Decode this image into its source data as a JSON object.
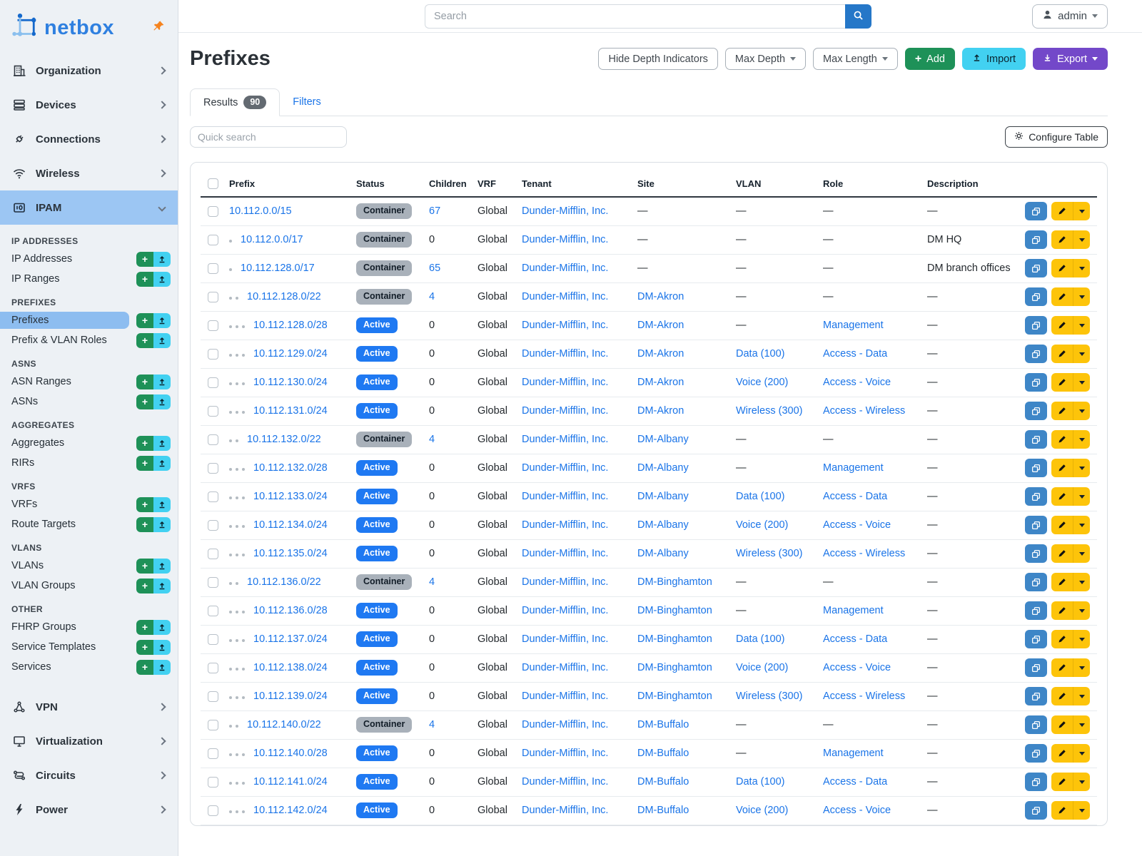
{
  "app": {
    "logo_text": "netbox"
  },
  "topbar": {
    "search_placeholder": "Search",
    "user": "admin"
  },
  "sidebar": {
    "top_items": [
      {
        "label": "Organization"
      },
      {
        "label": "Devices"
      },
      {
        "label": "Connections"
      },
      {
        "label": "Wireless"
      }
    ],
    "ipam_label": "IPAM",
    "ipam_sections": [
      {
        "label": "IP ADDRESSES",
        "items": [
          {
            "label": "IP Addresses"
          },
          {
            "label": "IP Ranges"
          }
        ]
      },
      {
        "label": "PREFIXES",
        "items": [
          {
            "label": "Prefixes",
            "active": true
          },
          {
            "label": "Prefix & VLAN Roles"
          }
        ]
      },
      {
        "label": "ASNS",
        "items": [
          {
            "label": "ASN Ranges"
          },
          {
            "label": "ASNs"
          }
        ]
      },
      {
        "label": "AGGREGATES",
        "items": [
          {
            "label": "Aggregates"
          },
          {
            "label": "RIRs"
          }
        ]
      },
      {
        "label": "VRFS",
        "items": [
          {
            "label": "VRFs"
          },
          {
            "label": "Route Targets"
          }
        ]
      },
      {
        "label": "VLANS",
        "items": [
          {
            "label": "VLANs"
          },
          {
            "label": "VLAN Groups"
          }
        ]
      },
      {
        "label": "OTHER",
        "items": [
          {
            "label": "FHRP Groups"
          },
          {
            "label": "Service Templates"
          },
          {
            "label": "Services"
          }
        ]
      }
    ],
    "bottom_items": [
      {
        "label": "VPN"
      },
      {
        "label": "Virtualization"
      },
      {
        "label": "Circuits"
      },
      {
        "label": "Power"
      }
    ]
  },
  "page": {
    "title": "Prefixes",
    "toolbar": {
      "hide_depth": "Hide Depth Indicators",
      "max_depth": "Max Depth",
      "max_length": "Max Length",
      "add": "Add",
      "import": "Import",
      "export": "Export"
    },
    "tabs": {
      "results": "Results",
      "results_count": "90",
      "filters": "Filters"
    },
    "quick_search_placeholder": "Quick search",
    "configure_table": "Configure Table"
  },
  "table": {
    "columns": [
      "Prefix",
      "Status",
      "Children",
      "VRF",
      "Tenant",
      "Site",
      "VLAN",
      "Role",
      "Description"
    ],
    "rows": [
      {
        "depth": 0,
        "prefix": "10.112.0.0/15",
        "status": "Container",
        "children": "67",
        "children_link": true,
        "vrf": "Global",
        "tenant": "Dunder-Mifflin, Inc.",
        "site": "—",
        "vlan": "—",
        "role": "—",
        "description": "—"
      },
      {
        "depth": 1,
        "prefix": "10.112.0.0/17",
        "status": "Container",
        "children": "0",
        "children_link": false,
        "vrf": "Global",
        "tenant": "Dunder-Mifflin, Inc.",
        "site": "—",
        "vlan": "—",
        "role": "—",
        "description": "DM HQ"
      },
      {
        "depth": 1,
        "prefix": "10.112.128.0/17",
        "status": "Container",
        "children": "65",
        "children_link": true,
        "vrf": "Global",
        "tenant": "Dunder-Mifflin, Inc.",
        "site": "—",
        "vlan": "—",
        "role": "—",
        "description": "DM branch offices"
      },
      {
        "depth": 2,
        "prefix": "10.112.128.0/22",
        "status": "Container",
        "children": "4",
        "children_link": true,
        "vrf": "Global",
        "tenant": "Dunder-Mifflin, Inc.",
        "site": "DM-Akron",
        "vlan": "—",
        "role": "—",
        "description": "—"
      },
      {
        "depth": 3,
        "prefix": "10.112.128.0/28",
        "status": "Active",
        "children": "0",
        "children_link": false,
        "vrf": "Global",
        "tenant": "Dunder-Mifflin, Inc.",
        "site": "DM-Akron",
        "vlan": "—",
        "role": "Management",
        "description": "—"
      },
      {
        "depth": 3,
        "prefix": "10.112.129.0/24",
        "status": "Active",
        "children": "0",
        "children_link": false,
        "vrf": "Global",
        "tenant": "Dunder-Mifflin, Inc.",
        "site": "DM-Akron",
        "vlan": "Data (100)",
        "role": "Access - Data",
        "description": "—"
      },
      {
        "depth": 3,
        "prefix": "10.112.130.0/24",
        "status": "Active",
        "children": "0",
        "children_link": false,
        "vrf": "Global",
        "tenant": "Dunder-Mifflin, Inc.",
        "site": "DM-Akron",
        "vlan": "Voice (200)",
        "role": "Access - Voice",
        "description": "—"
      },
      {
        "depth": 3,
        "prefix": "10.112.131.0/24",
        "status": "Active",
        "children": "0",
        "children_link": false,
        "vrf": "Global",
        "tenant": "Dunder-Mifflin, Inc.",
        "site": "DM-Akron",
        "vlan": "Wireless (300)",
        "role": "Access - Wireless",
        "description": "—"
      },
      {
        "depth": 2,
        "prefix": "10.112.132.0/22",
        "status": "Container",
        "children": "4",
        "children_link": true,
        "vrf": "Global",
        "tenant": "Dunder-Mifflin, Inc.",
        "site": "DM-Albany",
        "vlan": "—",
        "role": "—",
        "description": "—"
      },
      {
        "depth": 3,
        "prefix": "10.112.132.0/28",
        "status": "Active",
        "children": "0",
        "children_link": false,
        "vrf": "Global",
        "tenant": "Dunder-Mifflin, Inc.",
        "site": "DM-Albany",
        "vlan": "—",
        "role": "Management",
        "description": "—"
      },
      {
        "depth": 3,
        "prefix": "10.112.133.0/24",
        "status": "Active",
        "children": "0",
        "children_link": false,
        "vrf": "Global",
        "tenant": "Dunder-Mifflin, Inc.",
        "site": "DM-Albany",
        "vlan": "Data (100)",
        "role": "Access - Data",
        "description": "—"
      },
      {
        "depth": 3,
        "prefix": "10.112.134.0/24",
        "status": "Active",
        "children": "0",
        "children_link": false,
        "vrf": "Global",
        "tenant": "Dunder-Mifflin, Inc.",
        "site": "DM-Albany",
        "vlan": "Voice (200)",
        "role": "Access - Voice",
        "description": "—"
      },
      {
        "depth": 3,
        "prefix": "10.112.135.0/24",
        "status": "Active",
        "children": "0",
        "children_link": false,
        "vrf": "Global",
        "tenant": "Dunder-Mifflin, Inc.",
        "site": "DM-Albany",
        "vlan": "Wireless (300)",
        "role": "Access - Wireless",
        "description": "—"
      },
      {
        "depth": 2,
        "prefix": "10.112.136.0/22",
        "status": "Container",
        "children": "4",
        "children_link": true,
        "vrf": "Global",
        "tenant": "Dunder-Mifflin, Inc.",
        "site": "DM-Binghamton",
        "vlan": "—",
        "role": "—",
        "description": "—"
      },
      {
        "depth": 3,
        "prefix": "10.112.136.0/28",
        "status": "Active",
        "children": "0",
        "children_link": false,
        "vrf": "Global",
        "tenant": "Dunder-Mifflin, Inc.",
        "site": "DM-Binghamton",
        "vlan": "—",
        "role": "Management",
        "description": "—"
      },
      {
        "depth": 3,
        "prefix": "10.112.137.0/24",
        "status": "Active",
        "children": "0",
        "children_link": false,
        "vrf": "Global",
        "tenant": "Dunder-Mifflin, Inc.",
        "site": "DM-Binghamton",
        "vlan": "Data (100)",
        "role": "Access - Data",
        "description": "—"
      },
      {
        "depth": 3,
        "prefix": "10.112.138.0/24",
        "status": "Active",
        "children": "0",
        "children_link": false,
        "vrf": "Global",
        "tenant": "Dunder-Mifflin, Inc.",
        "site": "DM-Binghamton",
        "vlan": "Voice (200)",
        "role": "Access - Voice",
        "description": "—"
      },
      {
        "depth": 3,
        "prefix": "10.112.139.0/24",
        "status": "Active",
        "children": "0",
        "children_link": false,
        "vrf": "Global",
        "tenant": "Dunder-Mifflin, Inc.",
        "site": "DM-Binghamton",
        "vlan": "Wireless (300)",
        "role": "Access - Wireless",
        "description": "—"
      },
      {
        "depth": 2,
        "prefix": "10.112.140.0/22",
        "status": "Container",
        "children": "4",
        "children_link": true,
        "vrf": "Global",
        "tenant": "Dunder-Mifflin, Inc.",
        "site": "DM-Buffalo",
        "vlan": "—",
        "role": "—",
        "description": "—"
      },
      {
        "depth": 3,
        "prefix": "10.112.140.0/28",
        "status": "Active",
        "children": "0",
        "children_link": false,
        "vrf": "Global",
        "tenant": "Dunder-Mifflin, Inc.",
        "site": "DM-Buffalo",
        "vlan": "—",
        "role": "Management",
        "description": "—"
      },
      {
        "depth": 3,
        "prefix": "10.112.141.0/24",
        "status": "Active",
        "children": "0",
        "children_link": false,
        "vrf": "Global",
        "tenant": "Dunder-Mifflin, Inc.",
        "site": "DM-Buffalo",
        "vlan": "Data (100)",
        "role": "Access - Data",
        "description": "—"
      },
      {
        "depth": 3,
        "prefix": "10.112.142.0/24",
        "status": "Active",
        "children": "0",
        "children_link": false,
        "vrf": "Global",
        "tenant": "Dunder-Mifflin, Inc.",
        "site": "DM-Buffalo",
        "vlan": "Voice (200)",
        "role": "Access - Voice",
        "description": "—"
      }
    ]
  },
  "colors": {
    "link_blue": "#1a74e8",
    "active_badge": "#1f79f2",
    "container_badge": "#a9b1ba",
    "green": "#1e9158",
    "cyan": "#42d1f1",
    "purple": "#7348c9",
    "edit_yellow": "#fdc40a",
    "copy_blue": "#3e86c7",
    "sidebar_highlight": "#9cc6f3"
  }
}
